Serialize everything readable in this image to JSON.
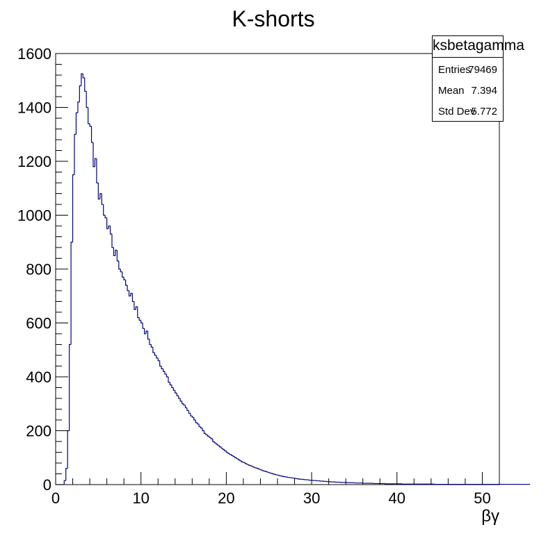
{
  "chart_data": {
    "type": "histogram",
    "title": "K-shorts",
    "xlabel": "βγ",
    "ylabel": "",
    "xlim": [
      0,
      52
    ],
    "ylim": [
      0,
      1600
    ],
    "xticks": [
      0,
      10,
      20,
      30,
      40,
      50
    ],
    "yticks": [
      0,
      200,
      400,
      600,
      800,
      1000,
      1200,
      1400,
      1600
    ],
    "bin_width": 0.2,
    "bin_start": 0,
    "series_color": "#00007f",
    "grid": false,
    "stats": {
      "name": "ksbetagamma",
      "rows": [
        {
          "label": "Entries",
          "value": "79469"
        },
        {
          "label": "Mean",
          "value": "7.394"
        },
        {
          "label": "Std Dev",
          "value": "5.772"
        }
      ]
    },
    "values": [
      0,
      0,
      0,
      0,
      0,
      15,
      60,
      200,
      520,
      900,
      1150,
      1300,
      1380,
      1420,
      1480,
      1525,
      1510,
      1460,
      1400,
      1340,
      1330,
      1270,
      1180,
      1210,
      1120,
      1060,
      1080,
      1040,
      1000,
      990,
      950,
      960,
      930,
      880,
      850,
      870,
      830,
      800,
      790,
      770,
      760,
      740,
      720,
      700,
      710,
      680,
      650,
      660,
      620,
      610,
      600,
      580,
      560,
      570,
      540,
      520,
      510,
      490,
      480,
      470,
      460,
      440,
      430,
      420,
      410,
      400,
      380,
      370,
      360,
      350,
      340,
      330,
      320,
      310,
      300,
      295,
      285,
      275,
      265,
      255,
      250,
      240,
      230,
      225,
      215,
      210,
      200,
      190,
      185,
      180,
      175,
      170,
      160,
      155,
      150,
      145,
      140,
      135,
      130,
      125,
      120,
      115,
      112,
      108,
      104,
      100,
      96,
      92,
      88,
      84,
      82,
      78,
      75,
      72,
      70,
      67,
      64,
      62,
      60,
      57,
      55,
      52,
      50,
      48,
      46,
      44,
      42,
      40,
      38,
      36,
      35,
      33,
      32,
      30,
      29,
      28,
      27,
      26,
      25,
      24,
      23,
      22,
      21,
      20,
      20,
      19,
      18,
      18,
      17,
      16,
      16,
      15,
      15,
      14,
      14,
      13,
      13,
      12,
      12,
      11,
      11,
      10,
      10,
      10,
      9,
      9,
      9,
      8,
      8,
      8,
      8,
      7,
      7,
      7,
      7,
      6,
      6,
      6,
      6,
      6,
      5,
      5,
      5,
      5,
      5,
      5,
      4,
      4,
      4,
      4,
      4,
      4,
      4,
      3,
      3,
      3,
      3,
      3,
      3,
      3,
      3,
      3,
      3,
      2,
      2,
      2,
      2,
      2,
      2,
      2,
      2,
      2,
      2,
      2,
      2,
      2,
      2,
      2,
      2,
      2,
      2,
      2,
      1,
      1,
      1,
      1,
      1,
      1,
      1,
      1,
      1,
      1,
      1,
      1,
      1,
      1,
      1,
      1,
      1,
      1,
      1,
      1,
      1,
      1,
      1,
      1,
      1,
      1,
      1,
      1,
      1,
      1,
      1,
      1,
      1,
      1,
      1,
      1,
      1,
      1,
      1,
      1,
      1,
      1,
      1,
      1,
      1,
      1,
      1,
      1,
      1,
      1,
      1,
      1,
      1,
      1,
      1,
      1
    ]
  }
}
